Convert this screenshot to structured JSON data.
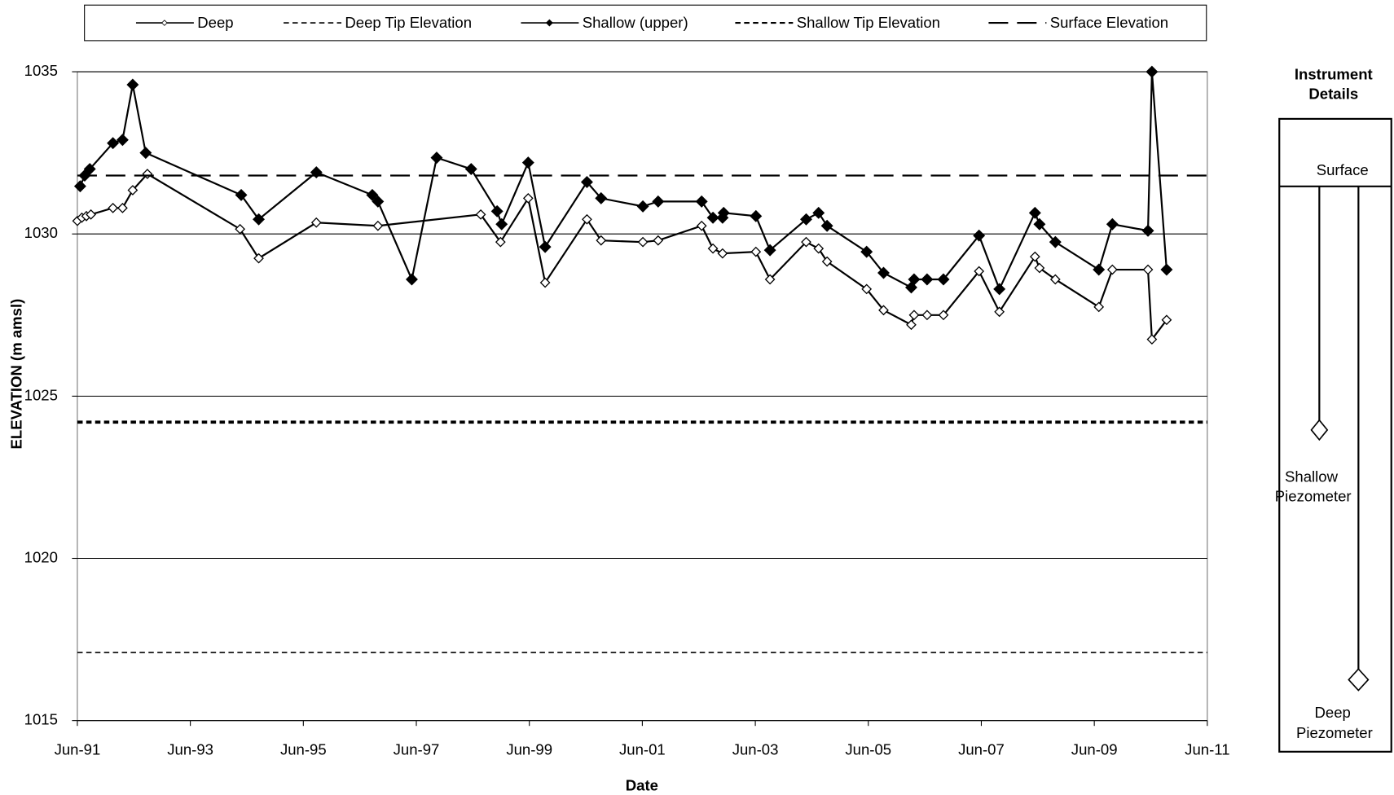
{
  "chart_data": {
    "type": "line",
    "x_label": "Date",
    "y_label": "ELEVATION (m amsl)",
    "xlim": [
      1991.42,
      2011.42
    ],
    "xticks": [
      {
        "value": 1991.42,
        "label": "Jun-91"
      },
      {
        "value": 1993.42,
        "label": "Jun-93"
      },
      {
        "value": 1995.42,
        "label": "Jun-95"
      },
      {
        "value": 1997.42,
        "label": "Jun-97"
      },
      {
        "value": 1999.42,
        "label": "Jun-99"
      },
      {
        "value": 2001.42,
        "label": "Jun-01"
      },
      {
        "value": 2003.42,
        "label": "Jun-03"
      },
      {
        "value": 2005.42,
        "label": "Jun-05"
      },
      {
        "value": 2007.42,
        "label": "Jun-07"
      },
      {
        "value": 2009.42,
        "label": "Jun-09"
      },
      {
        "value": 2011.42,
        "label": "Jun-11"
      }
    ],
    "ylim": [
      1015,
      1035
    ],
    "yticks": [
      1015,
      1020,
      1025,
      1030,
      1035
    ],
    "grid": true,
    "legend": "top",
    "series": [
      {
        "name": "Deep",
        "color": "#000000",
        "line_style": "solid",
        "marker": "open",
        "x": [
          1991.42,
          1991.5,
          1991.58,
          1991.66,
          1992.05,
          1992.22,
          1992.4,
          1992.66,
          1994.3,
          1994.63,
          1995.65,
          1996.74,
          1998.56,
          1998.91,
          1999.4,
          1999.7,
          2000.44,
          2000.69,
          2001.43,
          2001.7,
          2002.47,
          2002.67,
          2002.84,
          2003.43,
          2003.68,
          2004.32,
          2004.54,
          2004.69,
          2005.39,
          2005.69,
          2006.18,
          2006.23,
          2006.46,
          2006.75,
          2007.38,
          2007.74,
          2008.37,
          2008.45,
          2008.73,
          2009.5,
          2009.74,
          2010.37,
          2010.44,
          2010.7
        ],
        "values": [
          1030.4,
          1030.5,
          1030.55,
          1030.6,
          1030.8,
          1030.8,
          1031.35,
          1031.85,
          1030.15,
          1029.25,
          1030.35,
          1030.25,
          1030.6,
          1029.75,
          1031.1,
          1028.5,
          1030.45,
          1029.8,
          1029.75,
          1029.8,
          1030.25,
          1029.55,
          1029.4,
          1029.45,
          1028.6,
          1029.75,
          1029.55,
          1029.15,
          1028.3,
          1027.65,
          1027.2,
          1027.5,
          1027.5,
          1027.5,
          1028.85,
          1027.6,
          1029.3,
          1028.95,
          1028.6,
          1027.75,
          1028.9,
          1028.9,
          1026.75,
          1027.35
        ]
      },
      {
        "name": "Deep Tip Elevation",
        "color": "#000000",
        "line_style": "short-dash",
        "width": 1.5,
        "value": 1017.1
      },
      {
        "name": "Shallow (upper)",
        "color": "#000000",
        "line_style": "solid",
        "marker": "filled",
        "x": [
          1991.47,
          1991.55,
          1991.64,
          1992.05,
          1992.22,
          1992.4,
          1992.63,
          1994.32,
          1994.63,
          1995.65,
          1996.64,
          1996.74,
          1997.34,
          1997.78,
          1998.39,
          1998.85,
          1998.93,
          1999.4,
          1999.7,
          2000.44,
          2000.69,
          2001.43,
          2001.7,
          2002.47,
          2002.67,
          2002.84,
          2002.86,
          2003.43,
          2003.68,
          2004.32,
          2004.54,
          2004.69,
          2005.39,
          2005.69,
          2006.18,
          2006.23,
          2006.46,
          2006.75,
          2007.38,
          2007.74,
          2008.37,
          2008.45,
          2008.73,
          2009.5,
          2009.74,
          2010.37,
          2010.44,
          2010.7
        ],
        "values": [
          1031.47,
          1031.8,
          1032.0,
          1032.8,
          1032.9,
          1034.6,
          1032.5,
          1031.2,
          1030.45,
          1031.9,
          1031.2,
          1031.0,
          1028.6,
          1032.35,
          1032.0,
          1030.7,
          1030.3,
          1032.2,
          1029.6,
          1031.6,
          1031.1,
          1030.85,
          1031.0,
          1031.0,
          1030.5,
          1030.5,
          1030.65,
          1030.55,
          1029.5,
          1030.45,
          1030.65,
          1030.25,
          1029.45,
          1028.8,
          1028.35,
          1028.6,
          1028.6,
          1028.6,
          1029.95,
          1028.3,
          1030.65,
          1030.3,
          1029.75,
          1028.9,
          1030.3,
          1030.1,
          1035.0,
          1028.9
        ]
      },
      {
        "name": "Shallow Tip Elevation",
        "color": "#000000",
        "line_style": "short-dash",
        "width": 3.5,
        "value": 1024.2
      },
      {
        "name": "Surface Elevation",
        "color": "#000000",
        "line_style": "long-dash",
        "width": 2,
        "value": 1031.8
      }
    ]
  },
  "instrument_panel": {
    "title": [
      "Instrument",
      "Details"
    ],
    "surface": "Surface",
    "shallow": [
      "Shallow",
      "Piezometer"
    ],
    "deep": [
      "Deep",
      "Piezometer"
    ]
  }
}
